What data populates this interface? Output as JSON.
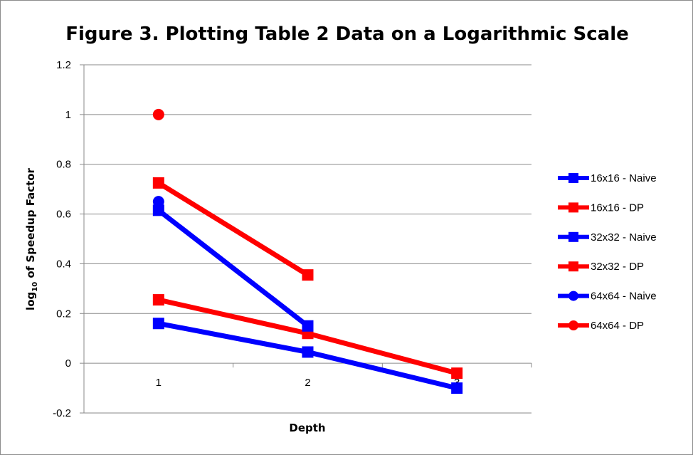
{
  "chart_data": {
    "type": "line",
    "title": "Figure 3. Plotting Table 2 Data on a Logarithmic Scale",
    "xlabel": "Depth",
    "ylabel": "log10 of Speedup Factor",
    "ylabel_main": "log",
    "ylabel_sub": "10",
    "ylabel_rest": " of Speedup Factor",
    "categories": [
      "1",
      "2",
      "3"
    ],
    "ylim": [
      -0.2,
      1.2
    ],
    "yticks": [
      -0.2,
      0,
      0.2,
      0.4,
      0.6,
      0.8,
      1,
      1.2
    ],
    "ytick_labels": [
      "-0.2",
      "0",
      "0.2",
      "0.4",
      "0.6",
      "0.8",
      "1",
      "1.2"
    ],
    "grid": true,
    "legend_position": "right",
    "series": [
      {
        "name": "16x16 - Naive",
        "color": "#0000ff",
        "marker": "square",
        "values": [
          0.16,
          0.045,
          -0.1
        ]
      },
      {
        "name": "16x16 - DP",
        "color": "#ff0000",
        "marker": "square",
        "values": [
          0.255,
          0.12,
          -0.04
        ]
      },
      {
        "name": "32x32 - Naive",
        "color": "#0000ff",
        "marker": "square",
        "values": [
          0.615,
          0.15,
          null
        ]
      },
      {
        "name": "32x32 - DP",
        "color": "#ff0000",
        "marker": "square",
        "values": [
          0.725,
          0.355,
          null
        ]
      },
      {
        "name": "64x64 - Naive",
        "color": "#0000ff",
        "marker": "circle",
        "values": [
          0.65,
          null,
          null
        ]
      },
      {
        "name": "64x64 - DP",
        "color": "#ff0000",
        "marker": "circle",
        "values": [
          1.0,
          null,
          null
        ]
      }
    ]
  }
}
